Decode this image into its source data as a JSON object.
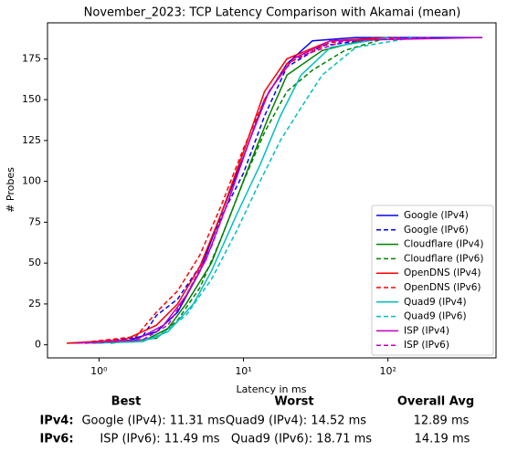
{
  "chart_data": {
    "type": "line",
    "title": "November_2023: TCP Latency Comparison with Akamai (mean)",
    "xlabel": "Latency in ms",
    "ylabel": "# Probes",
    "xscale": "log",
    "xlim": [
      0.44,
      560
    ],
    "ylim": [
      -8,
      197
    ],
    "xticks": [
      {
        "value": 1,
        "label": "10⁰"
      },
      {
        "value": 10,
        "label": "10¹"
      },
      {
        "value": 100,
        "label": "10²"
      }
    ],
    "yticks": [
      0,
      25,
      50,
      75,
      100,
      125,
      150,
      175
    ],
    "legend": "lower right",
    "series": [
      {
        "name": "Google (IPv4)",
        "color": "#0000ff",
        "dashed": false,
        "x": [
          0.6,
          1.5,
          2.5,
          3.5,
          5,
          7,
          10,
          14,
          20,
          30,
          60,
          450
        ],
        "values": [
          1,
          2,
          8,
          20,
          45,
          80,
          115,
          150,
          172,
          186,
          188,
          188
        ]
      },
      {
        "name": "Google (IPv6)",
        "color": "#0000ff",
        "dashed": true,
        "x": [
          0.8,
          2,
          2.5,
          3.5,
          5,
          7,
          10,
          14,
          20,
          35,
          100
        ],
        "values": [
          1,
          5,
          18,
          28,
          48,
          78,
          105,
          140,
          170,
          183,
          188
        ]
      },
      {
        "name": "Cloudflare (IPv4)",
        "color": "#008000",
        "dashed": false,
        "x": [
          0.9,
          2,
          3,
          4,
          6,
          8,
          11,
          15,
          20,
          35,
          80
        ],
        "values": [
          1,
          2,
          10,
          25,
          50,
          78,
          110,
          140,
          165,
          180,
          188
        ]
      },
      {
        "name": "Cloudflare (IPv6)",
        "color": "#008000",
        "dashed": true,
        "x": [
          1.2,
          2.5,
          3.5,
          5,
          7,
          10,
          14,
          20,
          30,
          50,
          100
        ],
        "values": [
          1,
          4,
          15,
          35,
          65,
          100,
          130,
          155,
          168,
          180,
          188
        ]
      },
      {
        "name": "OpenDNS (IPv4)",
        "color": "#ff0000",
        "dashed": false,
        "x": [
          0.6,
          1.5,
          2.5,
          3.5,
          5,
          7,
          10,
          14,
          20,
          40,
          100
        ],
        "values": [
          1,
          3,
          12,
          25,
          48,
          80,
          118,
          155,
          175,
          186,
          188
        ]
      },
      {
        "name": "OpenDNS (IPv6)",
        "color": "#ff0000",
        "dashed": true,
        "x": [
          0.7,
          1.8,
          2.5,
          3.5,
          5,
          7,
          10,
          14,
          20,
          40,
          120
        ],
        "values": [
          1,
          5,
          20,
          33,
          55,
          85,
          120,
          150,
          172,
          185,
          188
        ]
      },
      {
        "name": "Quad9 (IPv4)",
        "color": "#00bfbf",
        "dashed": false,
        "x": [
          0.8,
          2,
          3,
          4.5,
          6,
          9,
          13,
          18,
          25,
          40,
          100
        ],
        "values": [
          1,
          2,
          8,
          25,
          45,
          80,
          110,
          140,
          165,
          182,
          188
        ]
      },
      {
        "name": "Quad9 (IPv6)",
        "color": "#00bfbf",
        "dashed": true,
        "x": [
          1,
          2.5,
          4,
          6,
          9,
          13,
          18,
          25,
          35,
          60,
          150
        ],
        "values": [
          1,
          4,
          18,
          40,
          70,
          100,
          125,
          145,
          165,
          182,
          188
        ]
      },
      {
        "name": "ISP (IPv4)",
        "color": "#bf00bf",
        "dashed": false,
        "x": [
          0.7,
          1.8,
          2.8,
          4,
          5.5,
          8,
          11,
          15,
          22,
          40,
          450
        ],
        "values": [
          1,
          3,
          12,
          30,
          52,
          90,
          125,
          155,
          175,
          186,
          188
        ]
      },
      {
        "name": "ISP (IPv6)",
        "color": "#bf00bf",
        "dashed": true,
        "x": [
          0.8,
          2,
          3,
          4,
          6,
          8,
          11,
          15,
          22,
          50,
          200
        ],
        "values": [
          1,
          3,
          12,
          30,
          60,
          90,
          125,
          155,
          175,
          186,
          188
        ]
      }
    ]
  },
  "summary": {
    "headers": [
      "Best",
      "Worst",
      "Overall Avg"
    ],
    "rows": [
      [
        "IPv4:",
        "Google (IPv4): 11.31 ms",
        "Quad9 (IPv4): 14.52 ms",
        "12.89 ms"
      ],
      [
        "IPv6:",
        "ISP (IPv6): 11.49 ms",
        "Quad9 (IPv6): 18.71 ms",
        "14.19 ms"
      ]
    ]
  }
}
